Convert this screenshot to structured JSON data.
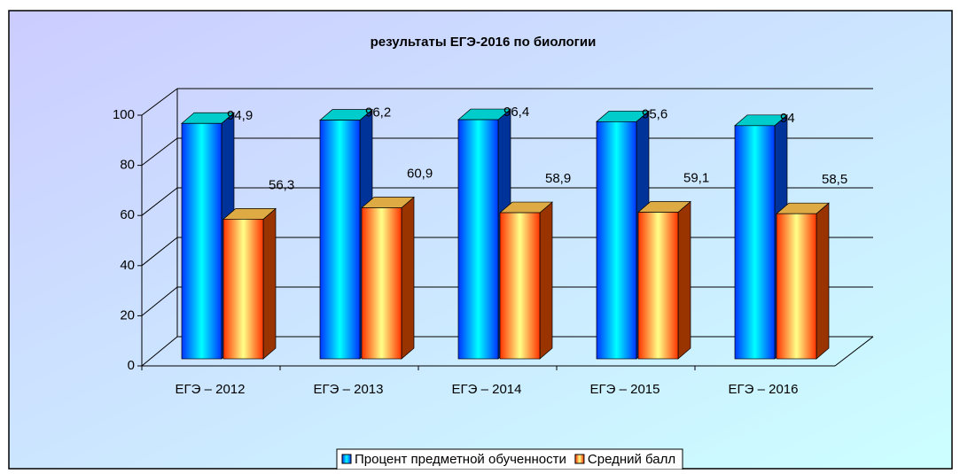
{
  "chart_data": {
    "type": "bar3d",
    "title": "результаты ЕГЭ-2016 по биологии",
    "categories": [
      "ЕГЭ – 2012",
      "ЕГЭ – 2013",
      "ЕГЭ – 2014",
      "ЕГЭ – 2015",
      "ЕГЭ – 2016"
    ],
    "series": [
      {
        "name": "Процент предметной обученности",
        "color": "#0033ff",
        "values": [
          94.9,
          96.2,
          96.4,
          95.6,
          94
        ],
        "value_labels": [
          "94,9",
          "96,2",
          "96,4",
          "95,6",
          "94"
        ]
      },
      {
        "name": "Средний балл",
        "color": "#ff3300",
        "values": [
          56.3,
          60.9,
          58.9,
          59.1,
          58.5
        ],
        "value_labels": [
          "56,3",
          "60,9",
          "58,9",
          "59,1",
          "58,5"
        ]
      }
    ],
    "ylim": [
      0,
      100
    ],
    "yticks": [
      0,
      20,
      40,
      60,
      80,
      100
    ],
    "grid": true,
    "legend": "bottom"
  }
}
